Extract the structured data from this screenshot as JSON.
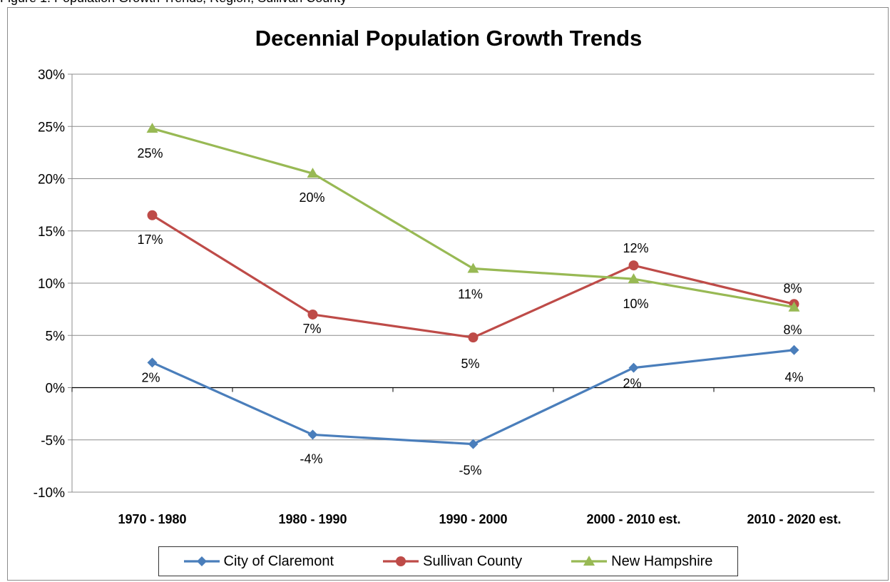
{
  "caption": "Figure 1. Population Growth Trends, Region, Sullivan County",
  "chart_data": {
    "type": "line",
    "title": "Decennial Population Growth Trends",
    "categories": [
      "1970 - 1980",
      "1980 - 1990",
      "1990 - 2000",
      "2000 - 2010 est.",
      "2010 - 2020 est."
    ],
    "ylim": [
      -10,
      30
    ],
    "yticks": [
      "-10%",
      "-5%",
      "0%",
      "5%",
      "10%",
      "15%",
      "20%",
      "25%",
      "30%"
    ],
    "grid": true,
    "legend_position": "bottom",
    "series": [
      {
        "name": "City of Claremont",
        "color": "#4a7ebb",
        "marker": "diamond",
        "values": [
          2.4,
          -4.5,
          -5.4,
          1.9,
          3.6
        ],
        "labels": [
          "2%",
          "-4%",
          "-5%",
          "2%",
          "4%"
        ]
      },
      {
        "name": "Sullivan County",
        "color": "#be4b48",
        "marker": "circle",
        "values": [
          16.5,
          7.0,
          4.8,
          11.7,
          8.0
        ],
        "labels": [
          "17%",
          "7%",
          "5%",
          "12%",
          "8%"
        ]
      },
      {
        "name": "New Hampshire",
        "color": "#98b954",
        "marker": "triangle",
        "values": [
          24.8,
          20.5,
          11.4,
          10.4,
          7.7
        ],
        "labels": [
          "25%",
          "20%",
          "11%",
          "10%",
          "8%"
        ]
      }
    ]
  }
}
